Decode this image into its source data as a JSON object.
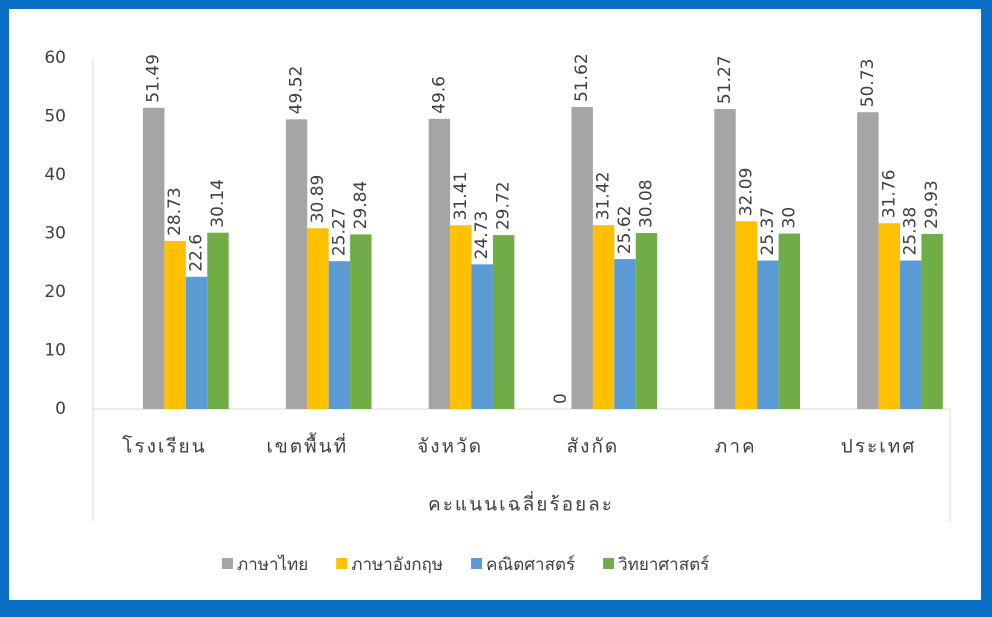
{
  "chart_data": {
    "type": "bar",
    "categories": [
      "โรงเรียน",
      "เขตพื้นที่",
      "จังหวัด",
      "สังกัด",
      "ภาค",
      "ประเทศ"
    ],
    "x_label": "คะแนนเฉลี่ยร้อยละ",
    "series": [
      {
        "color": "#a5a5a5",
        "values": [
          null,
          null,
          null,
          0,
          null,
          null
        ]
      },
      {
        "name": "ภาษาไทย",
        "color": "#a5a5a5",
        "values": [
          51.49,
          49.52,
          49.6,
          51.62,
          51.27,
          50.73
        ]
      },
      {
        "name": "ภาษาอังกฤษ",
        "color": "#ffc000",
        "values": [
          28.73,
          30.89,
          31.41,
          31.42,
          32.09,
          31.76
        ]
      },
      {
        "name": "คณิตศาสตร์",
        "color": "#5b9bd5",
        "values": [
          22.6,
          25.27,
          24.73,
          25.62,
          25.37,
          25.38
        ]
      },
      {
        "name": "วิทยาศาสตร์",
        "color": "#70ad47",
        "values": [
          30.14,
          29.84,
          29.72,
          30.08,
          30,
          29.93
        ]
      }
    ],
    "ylim": [
      0,
      60
    ],
    "yticks": [
      0,
      10,
      20,
      30,
      40,
      50,
      60
    ],
    "grid": false,
    "legend": "bottom"
  }
}
